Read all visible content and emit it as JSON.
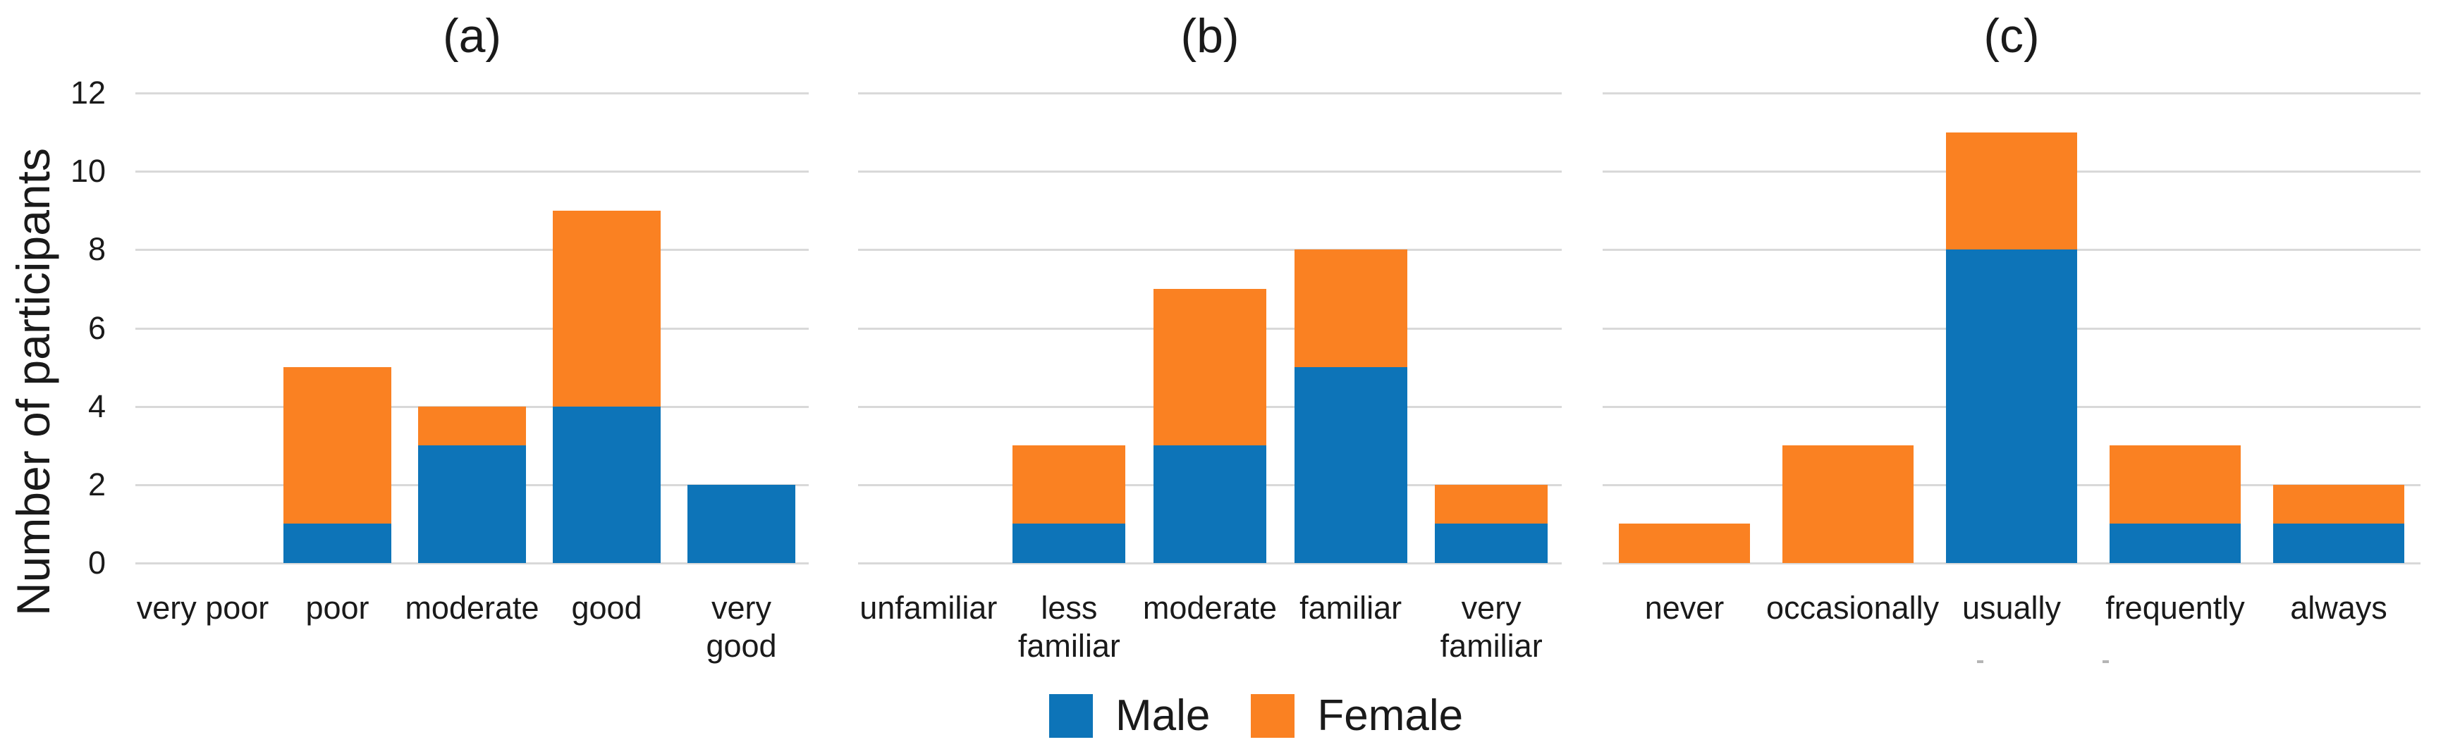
{
  "figure": {
    "y_axis_title": "Number of participants",
    "y_ticks": [
      "0",
      "2",
      "4",
      "6",
      "8",
      "10",
      "12"
    ],
    "y_max": 12,
    "legend": [
      {
        "label": "Male",
        "color": "#0d74b8"
      },
      {
        "label": "Female",
        "color": "#fa8122"
      }
    ],
    "colors": {
      "male": "#0d74b8",
      "female": "#fa8122",
      "gridline": "#d9d9d9",
      "text": "#1a1a1a"
    }
  },
  "chart_data": [
    {
      "type": "bar",
      "stacked": true,
      "title": "(a)",
      "xlabel": "",
      "ylabel": "Number of participants",
      "ylim": [
        0,
        12
      ],
      "grid": true,
      "gridlines": [
        0,
        2,
        4,
        6,
        8,
        10,
        12
      ],
      "legend_position": "bottom",
      "categories": [
        "very poor",
        "poor",
        "moderate",
        "good",
        "very good"
      ],
      "display_labels": [
        "very poor",
        "poor",
        "moderate",
        "good",
        "very good"
      ],
      "series": [
        {
          "name": "Male",
          "color": "#0d74b8",
          "values": [
            0,
            1,
            3,
            4,
            2
          ]
        },
        {
          "name": "Female",
          "color": "#fa8122",
          "values": [
            0,
            4,
            1,
            5,
            0
          ]
        }
      ],
      "totals": [
        0,
        5,
        4,
        9,
        2
      ]
    },
    {
      "type": "bar",
      "stacked": true,
      "title": "(b)",
      "xlabel": "",
      "ylabel": "Number of participants",
      "ylim": [
        0,
        12
      ],
      "grid": true,
      "gridlines": [
        0,
        2,
        4,
        6,
        8,
        10,
        12
      ],
      "legend_position": "bottom",
      "categories": [
        "unfamiliar",
        "less familiar",
        "moderate",
        "familiar",
        "very familiar"
      ],
      "display_labels": [
        "unfamiliar",
        "less\nfamiliar",
        "moderate",
        "familiar",
        "very\nfamiliar"
      ],
      "series": [
        {
          "name": "Male",
          "color": "#0d74b8",
          "values": [
            0,
            1,
            3,
            5,
            1
          ]
        },
        {
          "name": "Female",
          "color": "#fa8122",
          "values": [
            0,
            2,
            4,
            3,
            1
          ]
        }
      ],
      "totals": [
        0,
        3,
        7,
        8,
        2
      ]
    },
    {
      "type": "bar",
      "stacked": true,
      "title": "(c)",
      "xlabel": "",
      "ylabel": "Number of participants",
      "ylim": [
        0,
        12
      ],
      "grid": true,
      "gridlines": [
        0,
        2,
        4,
        6,
        8,
        10,
        12
      ],
      "legend_position": "bottom",
      "categories": [
        "never",
        "occasionally",
        "usually",
        "frequently",
        "always"
      ],
      "display_labels": [
        "never",
        "occasionally",
        "usually",
        "frequently",
        "always"
      ],
      "series": [
        {
          "name": "Male",
          "color": "#0d74b8",
          "values": [
            0,
            0,
            8,
            1,
            1
          ]
        },
        {
          "name": "Female",
          "color": "#fa8122",
          "values": [
            1,
            3,
            3,
            2,
            1
          ]
        }
      ],
      "totals": [
        1,
        3,
        11,
        3,
        2
      ]
    }
  ]
}
